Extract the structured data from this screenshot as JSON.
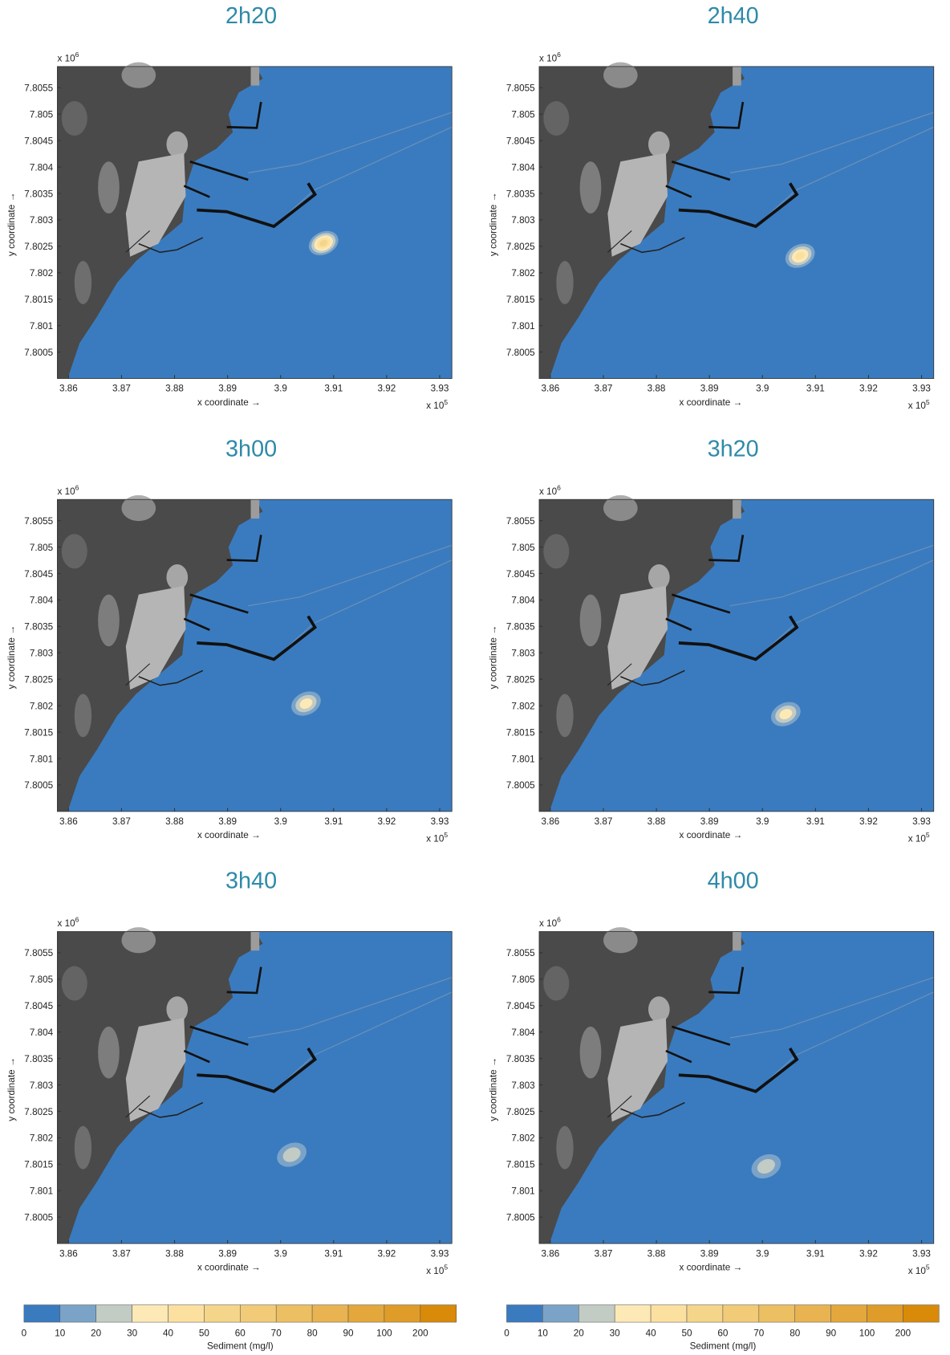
{
  "axes": {
    "xlabel": "x coordinate →",
    "ylabel": "y coordinate →",
    "x_multiplier": {
      "base": "x 10",
      "exp": "5"
    },
    "y_multiplier": {
      "base": "x 10",
      "exp": "6"
    },
    "xlim": [
      3.8579,
      3.9323
    ],
    "ylim": [
      7.8,
      7.8059
    ],
    "xticks": [
      3.86,
      3.87,
      3.88,
      3.89,
      3.9,
      3.91,
      3.92,
      3.93
    ],
    "yticks": [
      7.8005,
      7.801,
      7.8015,
      7.802,
      7.8025,
      7.803,
      7.8035,
      7.804,
      7.8045,
      7.805,
      7.8055
    ]
  },
  "panels": [
    {
      "title": "2h20",
      "plume": {
        "x": 3.9081,
        "y": 7.80256,
        "peak": 50
      }
    },
    {
      "title": "2h40",
      "plume": {
        "x": 3.9071,
        "y": 7.80232,
        "peak": 40
      }
    },
    {
      "title": "3h00",
      "plume": {
        "x": 3.9048,
        "y": 7.80204,
        "peak": 30
      }
    },
    {
      "title": "3h20",
      "plume": {
        "x": 3.9044,
        "y": 7.80184,
        "peak": 30
      }
    },
    {
      "title": "3h40",
      "plume": {
        "x": 3.9021,
        "y": 7.80168,
        "peak": 20
      }
    },
    {
      "title": "4h00",
      "plume": {
        "x": 3.9007,
        "y": 7.80146,
        "peak": 20
      }
    }
  ],
  "colorbar": {
    "label": "Sediment (mg/l)",
    "levels": [
      0,
      10,
      20,
      30,
      40,
      50,
      60,
      70,
      80,
      90,
      100,
      200
    ],
    "colors": [
      "#3a7bbf",
      "#7ba3c8",
      "#c2cbc4",
      "#fde9b5",
      "#fbe0a0",
      "#f5d58a",
      "#f2cb78",
      "#ecbf62",
      "#e8b350",
      "#e3a73b",
      "#df9c28",
      "#d98a09"
    ]
  }
}
